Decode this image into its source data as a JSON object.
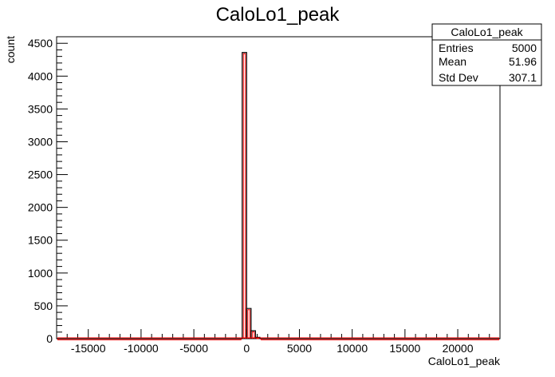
{
  "chart_data": {
    "type": "bar",
    "title": "CaloLo1_peak",
    "xlabel": "CaloLo1_peak",
    "ylabel": "count",
    "xlim": [
      -18000,
      24000
    ],
    "ylim": [
      0,
      4600
    ],
    "grid": false,
    "x_ticks": [
      -15000,
      -10000,
      -5000,
      0,
      5000,
      10000,
      15000,
      20000
    ],
    "y_ticks": [
      0,
      500,
      1000,
      1500,
      2000,
      2500,
      3000,
      3500,
      4000,
      4500
    ],
    "bins": [
      {
        "x_low": -18000,
        "x_high": -420,
        "value": 0
      },
      {
        "x_low": -420,
        "x_high": 0,
        "value": 4360
      },
      {
        "x_low": 0,
        "x_high": 420,
        "value": 460
      },
      {
        "x_low": 420,
        "x_high": 840,
        "value": 120
      },
      {
        "x_low": 840,
        "x_high": 1260,
        "value": 20
      },
      {
        "x_low": 1260,
        "x_high": 24000,
        "value": 0
      }
    ],
    "line_colors": {
      "outline": "#000000",
      "fill_edge": "#ff0000"
    },
    "stats": {
      "title": "CaloLo1_peak",
      "rows": [
        {
          "label": "Entries",
          "value": "5000"
        },
        {
          "label": "Mean",
          "value": "51.96"
        },
        {
          "label": "Std Dev",
          "value": "307.1"
        }
      ]
    }
  }
}
